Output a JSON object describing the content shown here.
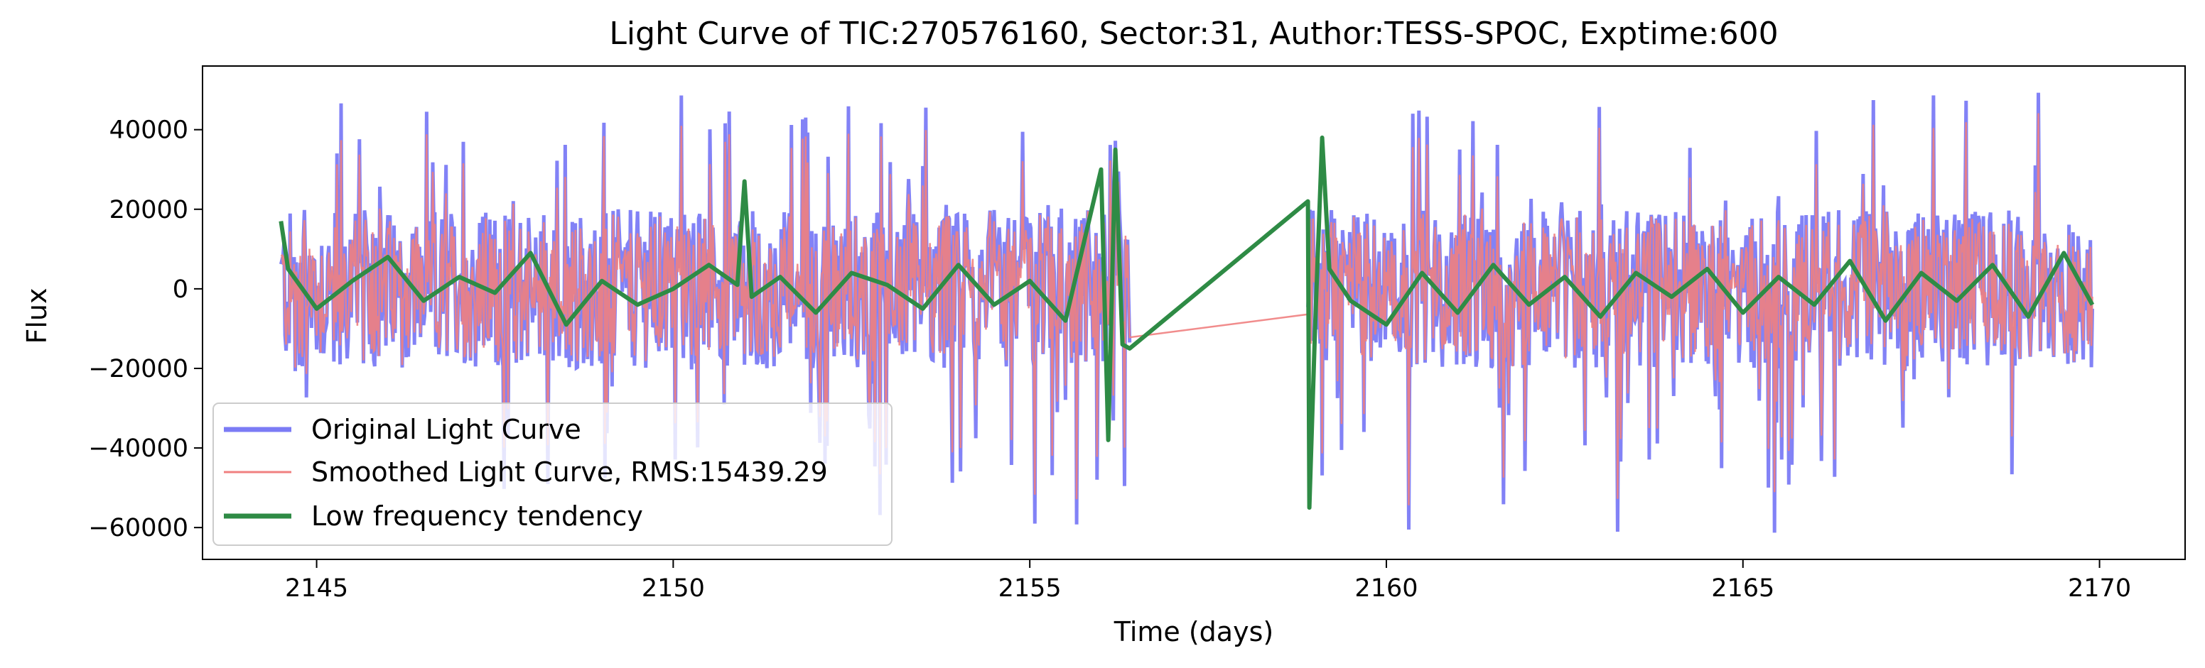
{
  "chart_data": {
    "type": "line",
    "title": "Light Curve of TIC:270576160, Sector:31, Author:TESS-SPOC, Exptime:600",
    "xlabel": "Time (days)",
    "ylabel": "Flux",
    "xlim": [
      2143.4,
      2171.2
    ],
    "ylim": [
      -68000,
      56000
    ],
    "xticks": [
      2145,
      2150,
      2155,
      2160,
      2165,
      2170
    ],
    "yticks": [
      -60000,
      -40000,
      -20000,
      0,
      20000,
      40000
    ],
    "x_tick_labels": [
      "2145",
      "2150",
      "2155",
      "2160",
      "2165",
      "2170"
    ],
    "y_tick_labels": [
      "−60000",
      "−40000",
      "−20000",
      "0",
      "20000",
      "40000"
    ],
    "grid": false,
    "legend_position": "lower-left",
    "segments": [
      {
        "x_start": 2144.5,
        "x_end": 2156.4
      },
      {
        "x_start": 2158.9,
        "x_end": 2169.9
      }
    ],
    "series": [
      {
        "name": "Original Light Curve",
        "color": "#7b7bf5",
        "amplitude_typical": 20000,
        "peak_max": 50000,
        "trough_min": -62000
      },
      {
        "name": "Smoothed Light Curve, RMS:15439.29",
        "color": "#f08080",
        "rms": 15439.29
      },
      {
        "name": "Low frequency tendency",
        "color": "#2e8b45",
        "x": [
          2144.5,
          2144.6,
          2145.0,
          2145.5,
          2146.0,
          2146.5,
          2147.0,
          2147.5,
          2148.0,
          2148.5,
          2149.0,
          2149.5,
          2150.0,
          2150.5,
          2150.9,
          2151.0,
          2151.1,
          2151.5,
          2152.0,
          2152.5,
          2153.0,
          2153.5,
          2154.0,
          2154.5,
          2155.0,
          2155.5,
          2156.0,
          2156.1,
          2156.2,
          2156.3,
          2156.4,
          2158.9,
          2158.92,
          2159.0,
          2159.1,
          2159.2,
          2159.5,
          2160.0,
          2160.5,
          2161.0,
          2161.5,
          2162.0,
          2162.5,
          2163.0,
          2163.5,
          2164.0,
          2164.5,
          2165.0,
          2165.5,
          2166.0,
          2166.5,
          2167.0,
          2167.5,
          2168.0,
          2168.5,
          2169.0,
          2169.5,
          2169.9
        ],
        "values": [
          17000,
          5000,
          -5000,
          2000,
          8000,
          -3000,
          3000,
          -1000,
          9000,
          -9000,
          2000,
          -4000,
          0,
          6000,
          1000,
          27000,
          -2000,
          3000,
          -6000,
          4000,
          1000,
          -5000,
          6000,
          -4000,
          2000,
          -8000,
          30000,
          -38000,
          35000,
          -14000,
          -15000,
          22000,
          -55000,
          -10000,
          38000,
          5000,
          -3000,
          -9000,
          4000,
          -6000,
          6000,
          -4000,
          3000,
          -7000,
          4000,
          -2000,
          5000,
          -6000,
          3000,
          -4000,
          7000,
          -8000,
          4000,
          -3000,
          6000,
          -7000,
          9000,
          -4000
        ]
      }
    ]
  }
}
